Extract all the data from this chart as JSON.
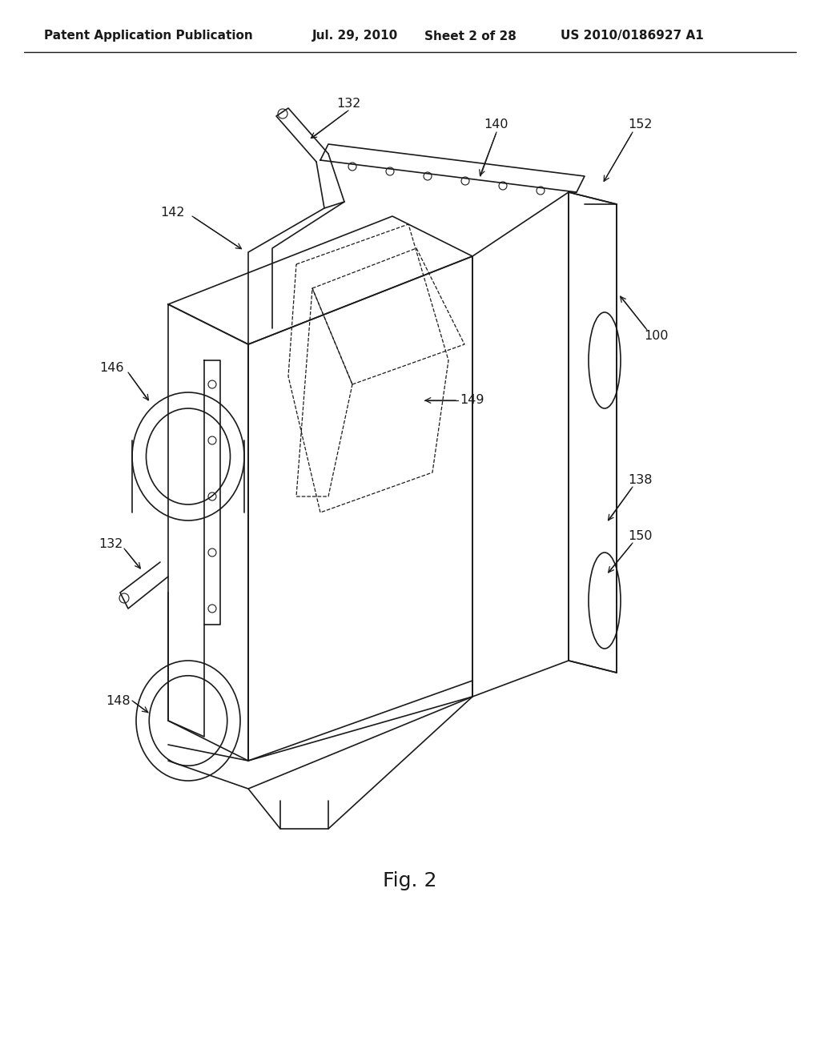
{
  "bg_color": "#ffffff",
  "line_color": "#1a1a1a",
  "title_header": "Patent Application Publication",
  "date_str": "Jul. 29, 2010",
  "sheet_str": "Sheet 2 of 28",
  "patent_str": "US 2010/0186927 A1",
  "fig_label": "Fig. 2",
  "labels": {
    "132_top": "132",
    "140": "140",
    "152": "152",
    "142": "142",
    "100": "100",
    "146": "146",
    "149": "149",
    "138": "138",
    "150": "150",
    "132_bot": "132",
    "148": "148"
  }
}
